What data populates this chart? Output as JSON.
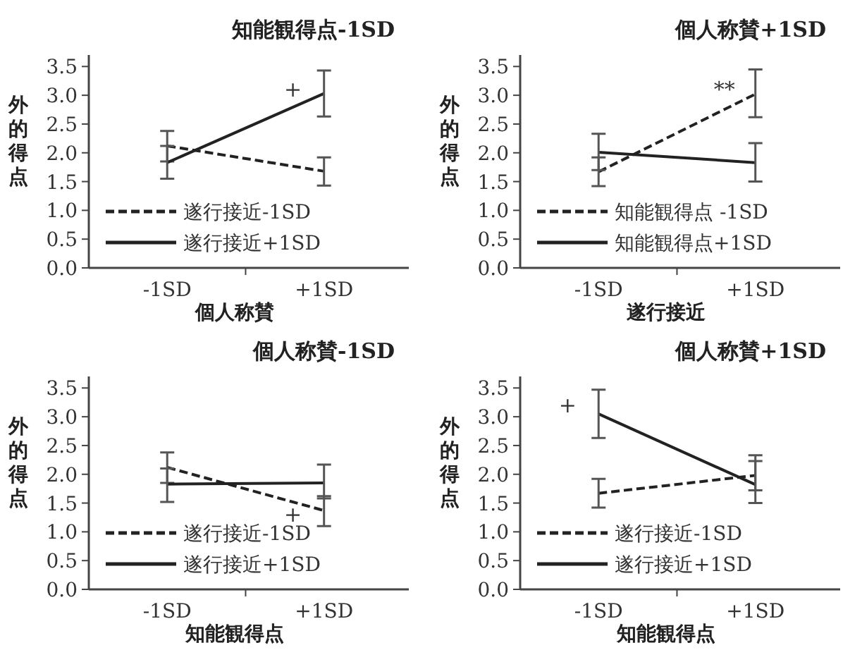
{
  "chart_data": [
    {
      "type": "line",
      "title": "知能観得点-1SD",
      "xlabel": "個人称賛",
      "ylabel": "外的得点",
      "categories": [
        "-1SD",
        "+1SD"
      ],
      "ylim": [
        0,
        3.7
      ],
      "yticks": [
        {
          "value": 0,
          "label": "0.0"
        },
        {
          "value": 0.5,
          "label": "0.5"
        },
        {
          "value": 1,
          "label": "1.0"
        },
        {
          "value": 1.5,
          "label": "1.5"
        },
        {
          "value": 2,
          "label": "2.0"
        },
        {
          "value": 2.5,
          "label": "2.5"
        },
        {
          "value": 3,
          "label": "3.0"
        },
        {
          "value": 3.5,
          "label": "3.5"
        }
      ],
      "legend": "bottom left",
      "grid": false,
      "marker": "none",
      "series": [
        {
          "name": "遂行接近-1SD",
          "color": "#222222",
          "line_style": "dashed",
          "values": [
            2.12,
            1.68
          ],
          "errors": [
            [
              1.85,
              2.38
            ],
            [
              1.43,
              1.92
            ]
          ]
        },
        {
          "name": "遂行接近+1SD",
          "color": "#222222",
          "line_style": "solid",
          "values": [
            1.83,
            3.03
          ],
          "errors": [
            [
              1.55,
              2.12
            ],
            [
              2.63,
              3.43
            ]
          ]
        }
      ],
      "annotations": [
        {
          "text": "+",
          "x": "+1SD",
          "y": 3.1
        }
      ]
    },
    {
      "type": "line",
      "title": "個人称賛+1SD",
      "xlabel": "遂行接近",
      "ylabel": "外的得点",
      "categories": [
        "-1SD",
        "+1SD"
      ],
      "ylim": [
        0,
        3.7
      ],
      "yticks": [
        {
          "value": 0,
          "label": "0.0"
        },
        {
          "value": 0.5,
          "label": "0.5"
        },
        {
          "value": 1,
          "label": "1.0"
        },
        {
          "value": 1.5,
          "label": "1.5"
        },
        {
          "value": 2,
          "label": "2.0"
        },
        {
          "value": 2.5,
          "label": "2.5"
        },
        {
          "value": 3,
          "label": "3.0"
        },
        {
          "value": 3.5,
          "label": "3.5"
        }
      ],
      "legend": "bottom left",
      "grid": false,
      "marker": "none",
      "series": [
        {
          "name": "知能観得点 -1SD",
          "color": "#222222",
          "line_style": "dashed",
          "values": [
            1.67,
            3.02
          ],
          "errors": [
            [
              1.42,
              1.92
            ],
            [
              2.62,
              3.45
            ]
          ]
        },
        {
          "name": "知能観得点+1SD",
          "color": "#222222",
          "line_style": "solid",
          "values": [
            2.01,
            1.83
          ],
          "errors": [
            [
              1.7,
              2.33
            ],
            [
              1.5,
              2.17
            ]
          ]
        }
      ],
      "annotations": [
        {
          "text": "**",
          "x": "+1SD",
          "y": 3.1
        }
      ]
    },
    {
      "type": "line",
      "title": "個人称賛-1SD",
      "xlabel": "知能観得点",
      "ylabel": "外的得点",
      "categories": [
        "-1SD",
        "+1SD"
      ],
      "ylim": [
        0,
        3.7
      ],
      "yticks": [
        {
          "value": 0,
          "label": "0.0"
        },
        {
          "value": 0.5,
          "label": "0.5"
        },
        {
          "value": 1,
          "label": "1.0"
        },
        {
          "value": 1.5,
          "label": "1.5"
        },
        {
          "value": 2,
          "label": "2.0"
        },
        {
          "value": 2.5,
          "label": "2.5"
        },
        {
          "value": 3,
          "label": "3.0"
        },
        {
          "value": 3.5,
          "label": "3.5"
        }
      ],
      "legend": "bottom left",
      "grid": false,
      "marker": "none",
      "series": [
        {
          "name": "遂行接近-1SD",
          "color": "#222222",
          "line_style": "dashed",
          "values": [
            2.12,
            1.37
          ],
          "errors": [
            [
              1.85,
              2.38
            ],
            [
              1.1,
              1.62
            ]
          ]
        },
        {
          "name": "遂行接近+1SD",
          "color": "#222222",
          "line_style": "solid",
          "values": [
            1.83,
            1.85
          ],
          "errors": [
            [
              1.52,
              2.1
            ],
            [
              1.58,
              2.17
            ]
          ]
        }
      ],
      "annotations": [
        {
          "text": "+",
          "x": "+1SD",
          "y": 1.3
        }
      ]
    },
    {
      "type": "line",
      "title": "個人称賛+1SD",
      "xlabel": "知能観得点",
      "ylabel": "外的得点",
      "categories": [
        "-1SD",
        "+1SD"
      ],
      "ylim": [
        0,
        3.7
      ],
      "yticks": [
        {
          "value": 0,
          "label": "0.0"
        },
        {
          "value": 0.5,
          "label": "0.5"
        },
        {
          "value": 1,
          "label": "1.0"
        },
        {
          "value": 1.5,
          "label": "1.5"
        },
        {
          "value": 2,
          "label": "2.0"
        },
        {
          "value": 2.5,
          "label": "2.5"
        },
        {
          "value": 3,
          "label": "3.0"
        },
        {
          "value": 3.5,
          "label": "3.5"
        }
      ],
      "legend": "bottom left",
      "grid": false,
      "marker": "none",
      "series": [
        {
          "name": "遂行接近-1SD",
          "color": "#222222",
          "line_style": "dashed",
          "values": [
            1.67,
            1.98
          ],
          "errors": [
            [
              1.42,
              1.92
            ],
            [
              1.72,
              2.23
            ]
          ]
        },
        {
          "name": "遂行接近+1SD",
          "color": "#222222",
          "line_style": "solid",
          "values": [
            3.05,
            1.82
          ],
          "errors": [
            [
              2.63,
              3.47
            ],
            [
              1.5,
              2.33
            ]
          ]
        }
      ],
      "annotations": [
        {
          "text": "+",
          "x": "-1SD",
          "y": 3.2
        }
      ]
    }
  ]
}
